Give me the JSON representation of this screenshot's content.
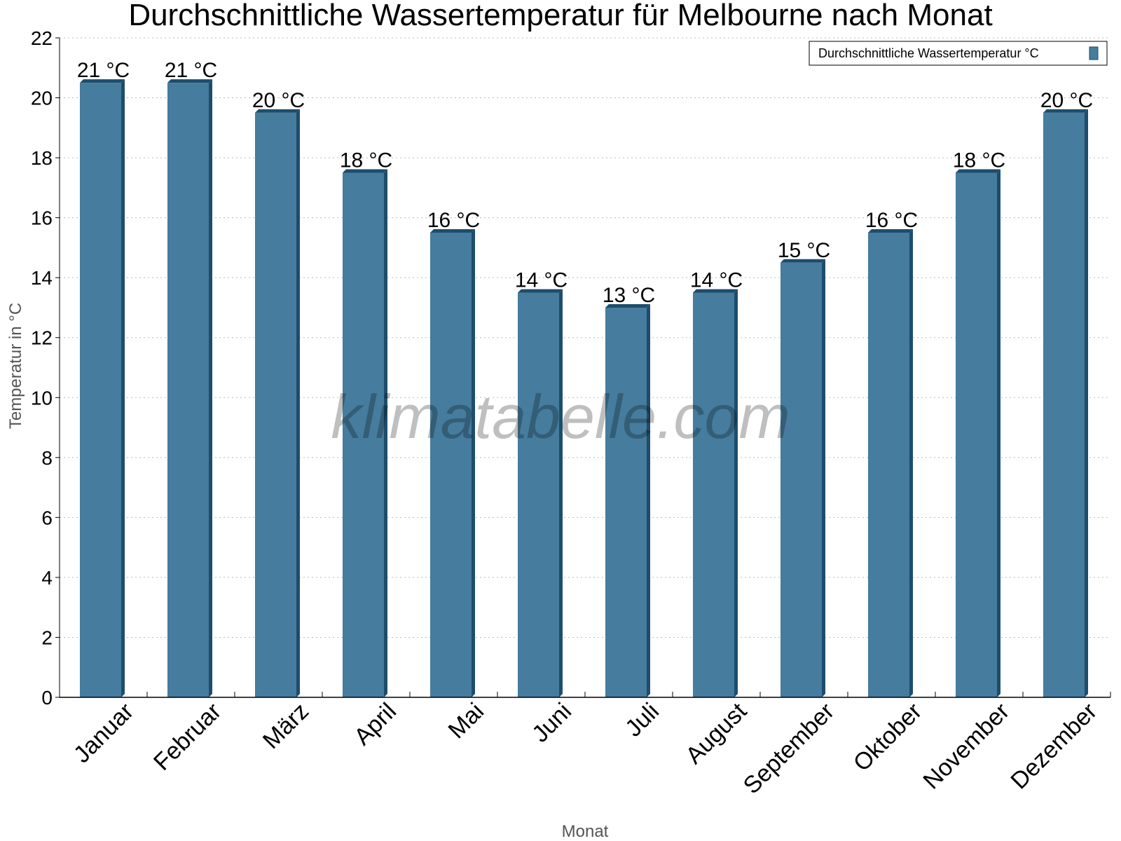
{
  "chart_data": {
    "type": "bar",
    "title": "Durchschnittliche Wassertemperatur für Melbourne nach Monat",
    "xlabel": "Monat",
    "ylabel": "Temperatur in °C",
    "ylim": [
      0,
      22
    ],
    "yticks": [
      0,
      2,
      4,
      6,
      8,
      10,
      12,
      14,
      16,
      18,
      20,
      22
    ],
    "grid": true,
    "legend_position": "top-right",
    "categories": [
      "Januar",
      "Februar",
      "März",
      "April",
      "Mai",
      "Juni",
      "Juli",
      "August",
      "September",
      "Oktober",
      "November",
      "Dezember"
    ],
    "series": [
      {
        "name": "Durchschnittliche Wassertemperatur °C",
        "values": [
          20.5,
          20.5,
          19.5,
          17.5,
          15.5,
          13.5,
          13,
          13.5,
          14.5,
          15.5,
          17.5,
          19.5
        ],
        "labels": [
          "21 °C",
          "21 °C",
          "20 °C",
          "18 °C",
          "16 °C",
          "14 °C",
          "13 °C",
          "14 °C",
          "15 °C",
          "16 °C",
          "18 °C",
          "20 °C"
        ],
        "color": "#467c9e",
        "side_color": "#1d4d6d"
      }
    ],
    "watermark": "klimatabelle.com"
  }
}
